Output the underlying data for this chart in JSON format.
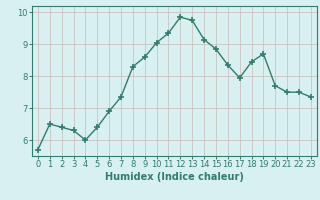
{
  "x": [
    0,
    1,
    2,
    3,
    4,
    5,
    6,
    7,
    8,
    9,
    10,
    11,
    12,
    13,
    14,
    15,
    16,
    17,
    18,
    19,
    20,
    21,
    22,
    23
  ],
  "y": [
    5.7,
    6.5,
    6.4,
    6.3,
    6.0,
    6.4,
    6.9,
    7.35,
    8.3,
    8.6,
    9.05,
    9.35,
    9.85,
    9.75,
    9.15,
    8.85,
    8.35,
    7.95,
    8.45,
    8.7,
    7.7,
    7.5,
    7.5,
    7.35
  ],
  "line_color": "#2e7d6e",
  "marker": "+",
  "marker_size": 4,
  "bg_color": "#d8f0f0",
  "grid_color": "#c8b8b8",
  "xlabel": "Humidex (Indice chaleur)",
  "ylabel": "",
  "title": "",
  "xlim": [
    -0.5,
    23.5
  ],
  "ylim": [
    5.5,
    10.2
  ],
  "yticks": [
    6,
    7,
    8,
    9,
    10
  ],
  "xticks": [
    0,
    1,
    2,
    3,
    4,
    5,
    6,
    7,
    8,
    9,
    10,
    11,
    12,
    13,
    14,
    15,
    16,
    17,
    18,
    19,
    20,
    21,
    22,
    23
  ],
  "xlabel_fontsize": 7,
  "tick_fontsize": 6,
  "line_width": 1.0
}
